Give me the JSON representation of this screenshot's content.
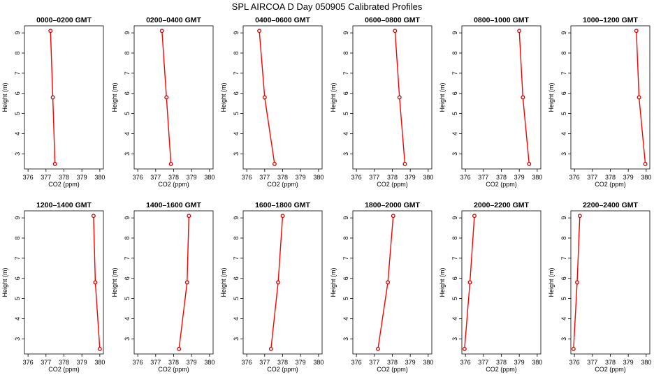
{
  "title": "SPL AIRCOA D  Day 050905  Calibrated Profiles",
  "chart_data": {
    "type": "line",
    "xlabel": "CO2 (ppm)",
    "ylabel": "Height (m)",
    "xlim": [
      375.8,
      380.2
    ],
    "ylim": [
      2.25,
      9.35
    ],
    "xticks": [
      376,
      377,
      378,
      379,
      380
    ],
    "yticks": [
      3,
      4,
      5,
      6,
      7,
      8,
      9
    ],
    "heights": [
      9.1,
      5.8,
      2.5
    ],
    "grid": false,
    "line_color": "#ff0000",
    "marker_color": "#cc0000",
    "panels": [
      {
        "title": "0000–0200 GMT",
        "co2": [
          377.25,
          377.38,
          377.5
        ]
      },
      {
        "title": "0200–0400 GMT",
        "co2": [
          377.35,
          377.6,
          377.85
        ]
      },
      {
        "title": "0400–0600 GMT",
        "co2": [
          376.7,
          377.0,
          377.55
        ]
      },
      {
        "title": "0600–0800 GMT",
        "co2": [
          378.15,
          378.4,
          378.7
        ]
      },
      {
        "title": "0800–1000 GMT",
        "co2": [
          379.0,
          379.2,
          379.55
        ]
      },
      {
        "title": "1000–1200 GMT",
        "co2": [
          379.45,
          379.6,
          379.95
        ]
      },
      {
        "title": "1200–1400 GMT",
        "co2": [
          379.65,
          379.75,
          380.0
        ]
      },
      {
        "title": "1400–1600 GMT",
        "co2": [
          378.85,
          378.75,
          378.3
        ]
      },
      {
        "title": "1600–1800 GMT",
        "co2": [
          378.0,
          377.75,
          377.35
        ]
      },
      {
        "title": "1800–2000 GMT",
        "co2": [
          378.05,
          377.75,
          377.2
        ]
      },
      {
        "title": "2000–2200 GMT",
        "co2": [
          376.5,
          376.25,
          375.95
        ]
      },
      {
        "title": "2200–2400 GMT",
        "co2": [
          376.3,
          376.15,
          375.95
        ]
      }
    ]
  }
}
